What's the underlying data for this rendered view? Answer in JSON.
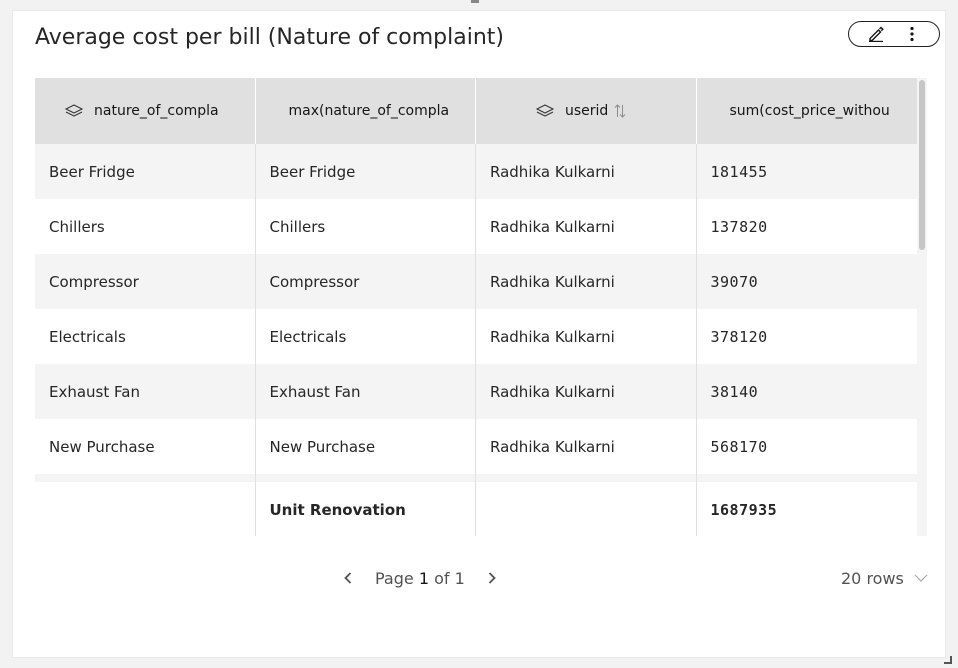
{
  "widget": {
    "title": "Average cost per bill (Nature of complaint)",
    "actions": [
      {
        "name": "edit-icon"
      },
      {
        "name": "more-vertical-icon"
      }
    ]
  },
  "table": {
    "columns": [
      {
        "label": "nature_of_compla",
        "icon": "layers-icon",
        "sortable": false
      },
      {
        "label": "max(nature_of_compla",
        "icon": "",
        "sortable": false
      },
      {
        "label": "userid",
        "icon": "layers-icon",
        "sortable": true
      },
      {
        "label": "sum(cost_price_withou",
        "icon": "",
        "sortable": false
      }
    ],
    "rows": [
      [
        "Beer Fridge",
        "Beer Fridge",
        "Radhika Kulkarni",
        "181455"
      ],
      [
        "Chillers",
        "Chillers",
        "Radhika Kulkarni",
        "137820"
      ],
      [
        "Compressor",
        "Compressor",
        "Radhika Kulkarni",
        "39070"
      ],
      [
        "Electricals",
        "Electricals",
        "Radhika Kulkarni",
        "378120"
      ],
      [
        "Exhaust Fan",
        "Exhaust Fan",
        "Radhika Kulkarni",
        "38140"
      ],
      [
        "New Purchase",
        "New Purchase",
        "Radhika Kulkarni",
        "568170"
      ]
    ],
    "footer": [
      "",
      "Unit Renovation",
      "",
      "1687935"
    ]
  },
  "pagination": {
    "page_prefix": "Page",
    "current_page": "1",
    "of_label": "of",
    "total_pages": "1",
    "rows_label": "20 rows"
  },
  "colors": {
    "header_bg": "#e0e0e0",
    "row_odd_bg": "#f4f4f4",
    "row_even_bg": "#ffffff"
  }
}
